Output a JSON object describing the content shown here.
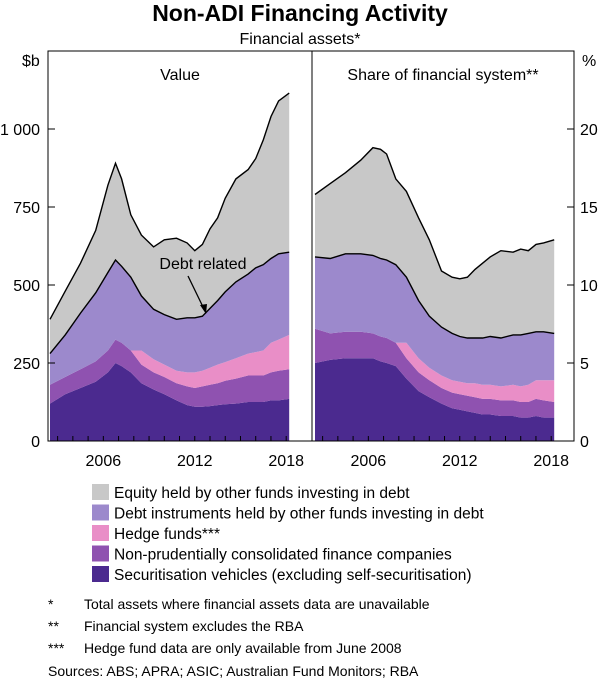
{
  "chart_data": {
    "type": "area",
    "title": "Non-ADI Financing Activity",
    "subtitle": "Financial assets*",
    "left_unit": "$b",
    "right_unit": "%",
    "y_left_range": [
      0,
      1250
    ],
    "y_left_ticks": [
      0,
      250,
      500,
      750,
      1000
    ],
    "y_left_tick_labels": [
      "0",
      "250",
      "500",
      "750",
      "1 000"
    ],
    "y_right_range": [
      0,
      25
    ],
    "y_right_ticks": [
      0,
      5,
      10,
      15,
      20
    ],
    "y_right_tick_labels": [
      "0",
      "5",
      "10",
      "15",
      "20"
    ],
    "x_tick_labels": [
      "2006",
      "2012",
      "2018"
    ],
    "panels": [
      {
        "title": "Value",
        "x": [
          2002.5,
          2003.5,
          2004.5,
          2005.5,
          2006.3,
          2006.8,
          2007.2,
          2007.8,
          2008.5,
          2009.3,
          2010,
          2010.8,
          2011.5,
          2012,
          2012.5,
          2013,
          2013.5,
          2014,
          2014.7,
          2015.5,
          2016,
          2016.5,
          2017,
          2017.5,
          2018.2
        ],
        "series": [
          {
            "name": "Securitisation vehicles (excluding self-securitisation)",
            "color": "#4b2a8f",
            "values": [
              120,
              150,
              170,
              190,
              220,
              250,
              240,
              220,
              185,
              165,
              150,
              130,
              115,
              110,
              110,
              112,
              115,
              118,
              120,
              125,
              125,
              125,
              130,
              130,
              135
            ]
          },
          {
            "name": "Non-prudentially consolidated finance companies",
            "color": "#8f52b0",
            "values": [
              60,
              55,
              60,
              65,
              70,
              75,
              75,
              70,
              60,
              55,
              55,
              55,
              60,
              60,
              65,
              68,
              70,
              75,
              80,
              85,
              85,
              85,
              90,
              95,
              95
            ]
          },
          {
            "name": "Hedge funds***",
            "color": "#e98ec7",
            "values": [
              0,
              0,
              0,
              0,
              0,
              0,
              0,
              0,
              45,
              42,
              40,
              40,
              45,
              50,
              50,
              55,
              60,
              60,
              65,
              70,
              75,
              80,
              95,
              100,
              110
            ]
          },
          {
            "name": "Debt instruments held by other funds investing in debt",
            "color": "#9c89cc",
            "values": [
              100,
              135,
              180,
              220,
              250,
              255,
              245,
              235,
              175,
              160,
              160,
              165,
              175,
              175,
              175,
              190,
              205,
              225,
              245,
              255,
              270,
              275,
              270,
              275,
              265
            ]
          },
          {
            "name": "Equity held by other funds investing in debt",
            "color": "#c8c8c8",
            "values": [
              110,
              140,
              160,
              200,
              280,
              310,
              280,
              200,
              195,
              200,
              240,
              260,
              240,
              215,
              230,
              255,
              265,
              300,
              330,
              335,
              350,
              400,
              455,
              490,
              510
            ]
          }
        ],
        "annotation": "Debt related"
      },
      {
        "title": "Share of financial system**",
        "x": [
          2002.5,
          2003.5,
          2004.5,
          2005.5,
          2006.3,
          2006.8,
          2007.2,
          2007.8,
          2008.5,
          2009.3,
          2010,
          2010.8,
          2011.5,
          2012,
          2012.5,
          2013,
          2013.5,
          2014,
          2014.7,
          2015.5,
          2016,
          2016.5,
          2017,
          2017.5,
          2018.2
        ],
        "series": [
          {
            "name": "Securitisation vehicles (excluding self-securitisation)",
            "color": "#4b2a8f",
            "values": [
              5.0,
              5.2,
              5.3,
              5.3,
              5.3,
              5.1,
              5.0,
              4.8,
              4.0,
              3.2,
              2.8,
              2.4,
              2.1,
              2.0,
              1.9,
              1.8,
              1.7,
              1.7,
              1.6,
              1.6,
              1.5,
              1.5,
              1.6,
              1.5,
              1.5
            ]
          },
          {
            "name": "Non-prudentially consolidated finance companies",
            "color": "#8f52b0",
            "values": [
              2.2,
              1.7,
              1.7,
              1.7,
              1.6,
              1.6,
              1.6,
              1.5,
              1.3,
              1.2,
              1.1,
              1.0,
              1.0,
              1.0,
              1.0,
              1.0,
              1.0,
              1.0,
              1.0,
              1.0,
              1.0,
              1.0,
              1.1,
              1.1,
              1.0
            ]
          },
          {
            "name": "Hedge funds***",
            "color": "#e98ec7",
            "values": [
              0,
              0,
              0,
              0,
              0,
              0,
              0,
              0,
              1.0,
              0.9,
              0.8,
              0.8,
              0.8,
              0.8,
              0.8,
              0.9,
              0.9,
              0.9,
              0.9,
              1.0,
              1.0,
              1.1,
              1.2,
              1.3,
              1.4
            ]
          },
          {
            "name": "Debt instruments held by other funds investing in debt",
            "color": "#9c89cc",
            "values": [
              4.6,
              4.8,
              5.0,
              5.0,
              5.0,
              5.0,
              5.0,
              5.0,
              4.2,
              3.7,
              3.3,
              3.1,
              3.0,
              2.9,
              2.9,
              2.9,
              3.0,
              3.1,
              3.1,
              3.2,
              3.3,
              3.3,
              3.1,
              3.1,
              3.0
            ]
          },
          {
            "name": "Equity held by other funds investing in debt",
            "color": "#c8c8c8",
            "values": [
              4.0,
              4.8,
              5.2,
              6.0,
              6.9,
              7.0,
              6.8,
              5.5,
              5.5,
              5.3,
              4.9,
              3.6,
              3.6,
              3.7,
              3.9,
              4.4,
              4.8,
              5.1,
              5.6,
              5.3,
              5.5,
              5.3,
              5.6,
              5.7,
              6.0
            ]
          }
        ]
      }
    ],
    "legend": [
      {
        "label": "Equity held by other funds investing in debt",
        "color": "#c8c8c8"
      },
      {
        "label": "Debt instruments held by other funds investing in debt",
        "color": "#9c89cc"
      },
      {
        "label": "Hedge funds***",
        "color": "#e98ec7"
      },
      {
        "label": "Non-prudentially consolidated finance companies",
        "color": "#8f52b0"
      },
      {
        "label": "Securitisation vehicles (excluding self-securitisation)",
        "color": "#4b2a8f"
      }
    ],
    "footnotes": [
      {
        "mark": "*",
        "text": "Total assets where financial assets data are unavailable"
      },
      {
        "mark": "**",
        "text": "Financial system excludes the RBA"
      },
      {
        "mark": "***",
        "text": "Hedge fund data are only available from June 2008"
      }
    ],
    "sources": "Sources: ABS; APRA; ASIC; Australian Fund Monitors; RBA"
  }
}
